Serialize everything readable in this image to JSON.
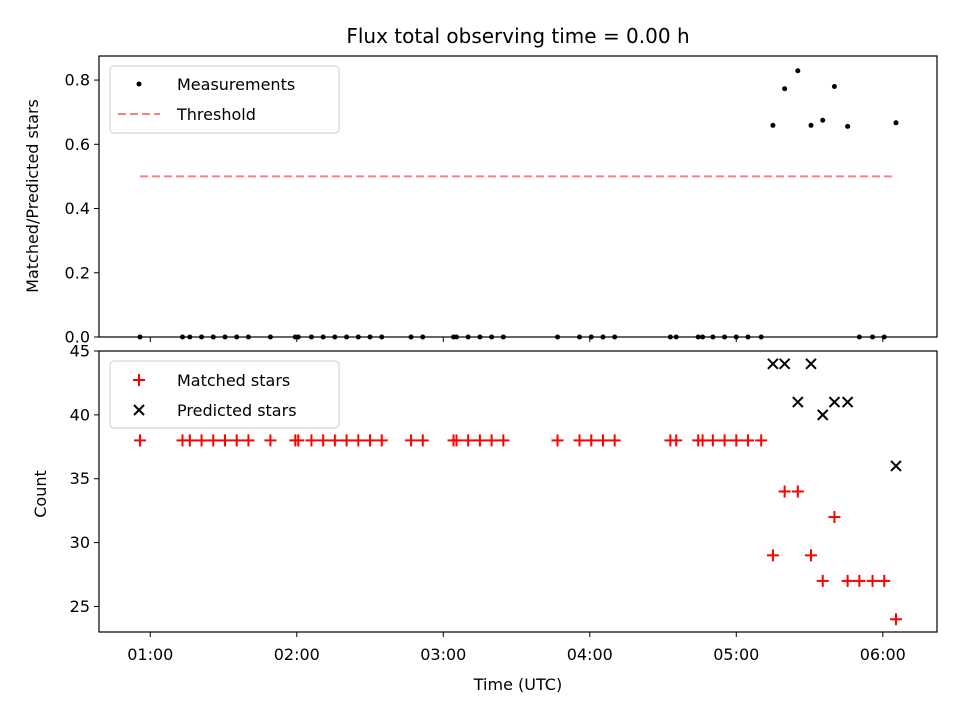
{
  "chart_data": {
    "title": "Flux total observing time = 0.00 h",
    "xlabel": "Time (UTC)",
    "x_ticks": [
      "01:00",
      "02:00",
      "03:00",
      "04:00",
      "05:00",
      "06:00"
    ],
    "x_tick_values": [
      1.0,
      2.0,
      3.0,
      4.0,
      5.0,
      6.0
    ],
    "xlim": [
      0.65,
      6.37
    ],
    "colors": {
      "measurements": "#000000",
      "threshold": "#ff7f7f",
      "matched": "#ff0000",
      "predicted": "#000000"
    },
    "panels": [
      {
        "type": "scatter",
        "ylabel": "Matched/Predicted stars",
        "ylim": [
          0.0,
          0.875
        ],
        "y_ticks": [
          "0.0",
          "0.2",
          "0.4",
          "0.6",
          "0.8"
        ],
        "y_tick_values": [
          0.0,
          0.2,
          0.4,
          0.6,
          0.8
        ],
        "legend_position": "top-left",
        "series": [
          {
            "name": "Measurements",
            "marker": "dot",
            "x": [
              0.93,
              1.22,
              1.27,
              1.35,
              1.43,
              1.51,
              1.59,
              1.67,
              1.82,
              1.99,
              2.01,
              2.1,
              2.18,
              2.26,
              2.34,
              2.42,
              2.5,
              2.58,
              2.78,
              2.86,
              3.07,
              3.09,
              3.17,
              3.25,
              3.33,
              3.41,
              3.78,
              3.93,
              4.01,
              4.09,
              4.17,
              4.55,
              4.59,
              4.74,
              4.77,
              4.84,
              4.92,
              5.0,
              5.08,
              5.17,
              5.25,
              5.33,
              5.42,
              5.51,
              5.59,
              5.67,
              5.76,
              5.84,
              5.93,
              6.01,
              6.09
            ],
            "y": [
              0,
              0,
              0,
              0,
              0,
              0,
              0,
              0,
              0,
              0,
              0,
              0,
              0,
              0,
              0,
              0,
              0,
              0,
              0,
              0,
              0,
              0,
              0,
              0,
              0,
              0,
              0,
              0,
              0,
              0,
              0,
              0,
              0,
              0,
              0,
              0,
              0,
              0,
              0,
              0,
              0.659,
              0.773,
              0.829,
              0.659,
              0.675,
              0.78,
              0.656,
              0,
              0,
              0,
              0.667
            ]
          },
          {
            "name": "Threshold",
            "marker": "dashed-line",
            "x": [
              0.93,
              6.09
            ],
            "y": [
              0.5,
              0.5
            ]
          }
        ]
      },
      {
        "type": "scatter",
        "ylabel": "Count",
        "ylim": [
          23,
          45
        ],
        "y_ticks": [
          "25",
          "30",
          "35",
          "40",
          "45"
        ],
        "y_tick_values": [
          25,
          30,
          35,
          40,
          45
        ],
        "legend_position": "top-left",
        "series": [
          {
            "name": "Matched stars",
            "marker": "plus",
            "x": [
              0.93,
              1.22,
              1.27,
              1.35,
              1.43,
              1.51,
              1.59,
              1.67,
              1.82,
              1.99,
              2.01,
              2.1,
              2.18,
              2.26,
              2.34,
              2.42,
              2.5,
              2.58,
              2.78,
              2.86,
              3.07,
              3.09,
              3.17,
              3.25,
              3.33,
              3.41,
              3.78,
              3.93,
              4.01,
              4.09,
              4.17,
              4.55,
              4.59,
              4.74,
              4.77,
              4.84,
              4.92,
              5.0,
              5.08,
              5.17,
              5.25,
              5.33,
              5.42,
              5.51,
              5.59,
              5.67,
              5.76,
              5.84,
              5.93,
              6.01,
              6.09
            ],
            "y": [
              38,
              38,
              38,
              38,
              38,
              38,
              38,
              38,
              38,
              38,
              38,
              38,
              38,
              38,
              38,
              38,
              38,
              38,
              38,
              38,
              38,
              38,
              38,
              38,
              38,
              38,
              38,
              38,
              38,
              38,
              38,
              38,
              38,
              38,
              38,
              38,
              38,
              38,
              38,
              38,
              29,
              34,
              34,
              29,
              27,
              32,
              27,
              27,
              27,
              27,
              24
            ]
          },
          {
            "name": "Predicted stars",
            "marker": "x",
            "x": [
              5.25,
              5.33,
              5.42,
              5.51,
              5.59,
              5.67,
              5.76,
              6.09
            ],
            "y": [
              44,
              44,
              41,
              44,
              40,
              41,
              41,
              36
            ]
          }
        ]
      }
    ]
  }
}
